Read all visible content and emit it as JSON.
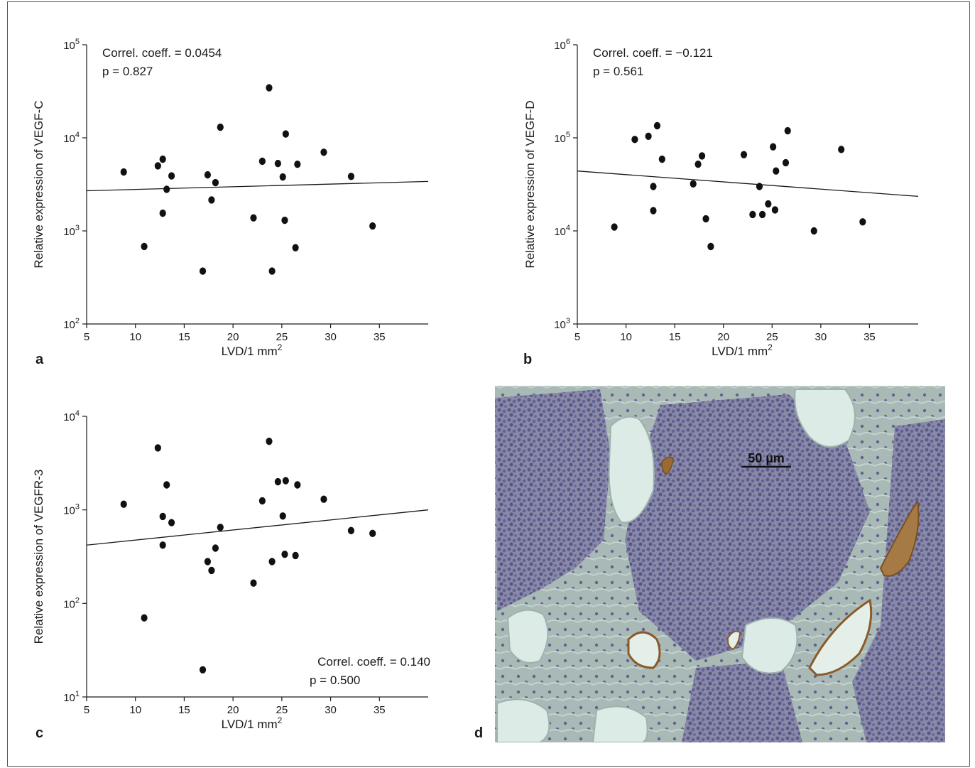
{
  "chart_data": [
    {
      "panel": "a",
      "type": "scatter",
      "xlabel": "LVD/1 mm",
      "xlabel_sup": "2",
      "ylabel": "Relative expression of VEGF-C",
      "xlim": [
        5,
        40
      ],
      "xticks": [
        5,
        10,
        15,
        20,
        25,
        30,
        35
      ],
      "y_scale": "log",
      "y_exp_range": [
        2,
        5
      ],
      "yticks": [
        {
          "base": "10",
          "exp": "2",
          "v": 100
        },
        {
          "base": "10",
          "exp": "3",
          "v": 1000
        },
        {
          "base": "10",
          "exp": "4",
          "v": 10000
        },
        {
          "base": "10",
          "exp": "5",
          "v": 100000
        }
      ],
      "annotation": {
        "line1": "Correl. coeff. = 0.0454",
        "line2": "p = 0.827",
        "position": "top-left"
      },
      "fit_line": {
        "x": [
          5,
          40
        ],
        "y": [
          2700,
          3400
        ]
      },
      "points": [
        {
          "x": 8.8,
          "y": 4300
        },
        {
          "x": 10.9,
          "y": 680
        },
        {
          "x": 12.3,
          "y": 5000
        },
        {
          "x": 12.8,
          "y": 5900
        },
        {
          "x": 12.8,
          "y": 1550
        },
        {
          "x": 13.2,
          "y": 2800
        },
        {
          "x": 13.7,
          "y": 3900
        },
        {
          "x": 16.9,
          "y": 370
        },
        {
          "x": 17.4,
          "y": 4000
        },
        {
          "x": 17.8,
          "y": 2150
        },
        {
          "x": 18.2,
          "y": 3300
        },
        {
          "x": 18.7,
          "y": 13000
        },
        {
          "x": 22.1,
          "y": 1380
        },
        {
          "x": 23.0,
          "y": 5600
        },
        {
          "x": 23.7,
          "y": 34500
        },
        {
          "x": 24.0,
          "y": 370
        },
        {
          "x": 24.6,
          "y": 5300
        },
        {
          "x": 25.1,
          "y": 3800
        },
        {
          "x": 25.3,
          "y": 1300
        },
        {
          "x": 25.4,
          "y": 11000
        },
        {
          "x": 26.4,
          "y": 660
        },
        {
          "x": 26.6,
          "y": 5200
        },
        {
          "x": 29.3,
          "y": 7000
        },
        {
          "x": 32.1,
          "y": 3850
        },
        {
          "x": 34.3,
          "y": 1130
        }
      ]
    },
    {
      "panel": "b",
      "type": "scatter",
      "xlabel": "LVD/1 mm",
      "xlabel_sup": "2",
      "ylabel": "Relative expression of VEGF-D",
      "xlim": [
        5,
        40
      ],
      "xticks": [
        5,
        10,
        15,
        20,
        25,
        30,
        35
      ],
      "y_scale": "log",
      "y_exp_range": [
        3,
        6
      ],
      "yticks": [
        {
          "base": "10",
          "exp": "3",
          "v": 1000
        },
        {
          "base": "10",
          "exp": "4",
          "v": 10000
        },
        {
          "base": "10",
          "exp": "5",
          "v": 100000
        },
        {
          "base": "10",
          "exp": "6",
          "v": 1000000
        }
      ],
      "annotation": {
        "line1": "Correl. coeff. = −0.121",
        "line2": "p = 0.561",
        "position": "top-left"
      },
      "fit_line": {
        "x": [
          5,
          40
        ],
        "y": [
          44000,
          23500
        ]
      },
      "points": [
        {
          "x": 8.8,
          "y": 11000
        },
        {
          "x": 10.9,
          "y": 96000
        },
        {
          "x": 12.3,
          "y": 104000
        },
        {
          "x": 12.8,
          "y": 30000
        },
        {
          "x": 12.8,
          "y": 16500
        },
        {
          "x": 13.2,
          "y": 135000
        },
        {
          "x": 13.7,
          "y": 59000
        },
        {
          "x": 16.9,
          "y": 32000
        },
        {
          "x": 17.4,
          "y": 52000
        },
        {
          "x": 17.8,
          "y": 64000
        },
        {
          "x": 18.2,
          "y": 13500
        },
        {
          "x": 18.7,
          "y": 6800
        },
        {
          "x": 22.1,
          "y": 66000
        },
        {
          "x": 23.0,
          "y": 15000
        },
        {
          "x": 23.7,
          "y": 30000
        },
        {
          "x": 24.0,
          "y": 15000
        },
        {
          "x": 24.6,
          "y": 19500
        },
        {
          "x": 25.1,
          "y": 80000
        },
        {
          "x": 25.3,
          "y": 16800
        },
        {
          "x": 25.4,
          "y": 44000
        },
        {
          "x": 26.4,
          "y": 54000
        },
        {
          "x": 26.6,
          "y": 119000
        },
        {
          "x": 29.3,
          "y": 10000
        },
        {
          "x": 32.1,
          "y": 75000
        },
        {
          "x": 34.3,
          "y": 12500
        }
      ]
    },
    {
      "panel": "c",
      "type": "scatter",
      "xlabel": "LVD/1 mm",
      "xlabel_sup": "2",
      "ylabel": "Relative expression of VEGFR-3",
      "xlim": [
        5,
        40
      ],
      "xticks": [
        5,
        10,
        15,
        20,
        25,
        30,
        35
      ],
      "y_scale": "log",
      "y_exp_range": [
        1,
        4
      ],
      "yticks": [
        {
          "base": "10",
          "exp": "1",
          "v": 10
        },
        {
          "base": "10",
          "exp": "2",
          "v": 100
        },
        {
          "base": "10",
          "exp": "3",
          "v": 1000
        },
        {
          "base": "10",
          "exp": "4",
          "v": 10000
        }
      ],
      "annotation": {
        "line1": "Correl. coeff. = 0.140",
        "line2": "p = 0.500",
        "position": "bottom-right"
      },
      "fit_line": {
        "x": [
          5,
          40
        ],
        "y": [
          420,
          1000
        ]
      },
      "points": [
        {
          "x": 8.8,
          "y": 1150
        },
        {
          "x": 10.9,
          "y": 70
        },
        {
          "x": 12.3,
          "y": 4600
        },
        {
          "x": 12.8,
          "y": 850
        },
        {
          "x": 12.8,
          "y": 420
        },
        {
          "x": 13.2,
          "y": 1850
        },
        {
          "x": 13.7,
          "y": 730
        },
        {
          "x": 16.9,
          "y": 19.5
        },
        {
          "x": 17.4,
          "y": 280
        },
        {
          "x": 17.8,
          "y": 225
        },
        {
          "x": 18.2,
          "y": 390
        },
        {
          "x": 18.7,
          "y": 650
        },
        {
          "x": 22.1,
          "y": 165
        },
        {
          "x": 23.0,
          "y": 1250
        },
        {
          "x": 23.7,
          "y": 5400
        },
        {
          "x": 24.0,
          "y": 280
        },
        {
          "x": 24.6,
          "y": 2000
        },
        {
          "x": 25.1,
          "y": 860
        },
        {
          "x": 25.3,
          "y": 335
        },
        {
          "x": 25.4,
          "y": 2050
        },
        {
          "x": 26.4,
          "y": 325
        },
        {
          "x": 26.6,
          "y": 1850
        },
        {
          "x": 29.3,
          "y": 1300
        },
        {
          "x": 32.1,
          "y": 600
        },
        {
          "x": 34.3,
          "y": 560
        }
      ]
    }
  ],
  "panel_d": {
    "letter": "d",
    "scale_bar_label": "50 µm",
    "colors": {
      "nuclei": "#6e6f9a",
      "stroma": "#a8b8b5",
      "lumen": "#dcebe6",
      "vessel_stain": "#8a5a2a"
    }
  }
}
